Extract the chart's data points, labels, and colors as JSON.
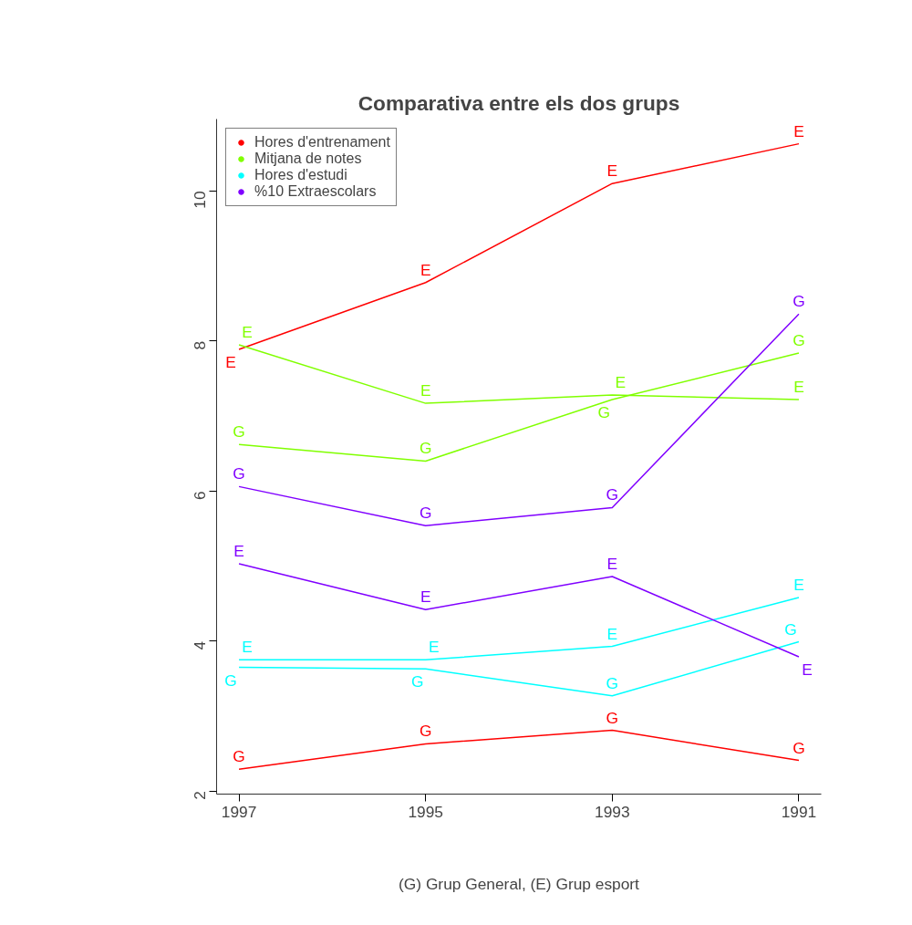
{
  "chart_data": {
    "type": "line",
    "title": "Comparativa entre els dos grups",
    "xlabel": "(G) Grup General, (E) Grup esport",
    "categories": [
      "1997",
      "1995",
      "1993",
      "1991"
    ],
    "ylim": [
      1.96,
      10.96
    ],
    "yticks": [
      2,
      4,
      6,
      8,
      10
    ],
    "grid": false,
    "legend": "top left",
    "marker": "none",
    "line_style": "solid",
    "series": [
      {
        "name": "Hores d'entrenament",
        "color": "#ff0000",
        "values": [
          2.29,
          2.63,
          2.81,
          2.41
        ],
        "value_labels": [
          "G",
          "G",
          "G",
          "G"
        ]
      },
      {
        "color": "#ff0000",
        "values": [
          7.89,
          8.78,
          10.1,
          10.63
        ],
        "value_labels": [
          "E",
          "E",
          "E",
          "E"
        ]
      },
      {
        "name": "Mitjana de notes",
        "color": "#80ff00",
        "values": [
          6.62,
          6.4,
          7.22,
          7.84
        ],
        "value_labels": [
          "G",
          "G",
          "G",
          "G"
        ]
      },
      {
        "color": "#80ff00",
        "values": [
          7.95,
          7.17,
          7.28,
          7.22
        ],
        "value_labels": [
          "E",
          "E",
          "E",
          "E"
        ]
      },
      {
        "name": "Hores d'estudi",
        "color": "#00ffff",
        "values": [
          3.65,
          3.63,
          3.27,
          3.99
        ],
        "value_labels": [
          "G",
          "G",
          "G",
          "G"
        ]
      },
      {
        "color": "#00ffff",
        "values": [
          3.75,
          3.75,
          3.93,
          4.58
        ],
        "value_labels": [
          "E",
          "E",
          "E",
          "E"
        ]
      },
      {
        "name": "%10 Extraescolars",
        "color": "#8000ff",
        "values": [
          6.06,
          5.54,
          5.78,
          8.36
        ],
        "value_labels": [
          "G",
          "G",
          "G",
          "G"
        ]
      },
      {
        "color": "#8000ff",
        "values": [
          5.03,
          4.42,
          4.86,
          3.79
        ],
        "value_labels": [
          "E",
          "E",
          "E",
          "E"
        ]
      }
    ]
  }
}
